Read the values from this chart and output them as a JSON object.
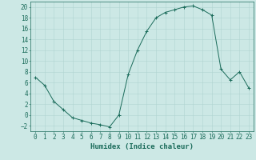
{
  "x": [
    0,
    1,
    2,
    3,
    4,
    5,
    6,
    7,
    8,
    9,
    10,
    11,
    12,
    13,
    14,
    15,
    16,
    17,
    18,
    19,
    20,
    21,
    22,
    23
  ],
  "y": [
    7,
    5.5,
    2.5,
    1,
    -0.5,
    -1,
    -1.5,
    -1.8,
    -2.2,
    0,
    7.5,
    12,
    15.5,
    18,
    19,
    19.5,
    20,
    20.2,
    19.5,
    18.5,
    8.5,
    6.5,
    8,
    5
  ],
  "xlabel": "Humidex (Indice chaleur)",
  "ylim": [
    -3,
    21
  ],
  "xlim": [
    -0.5,
    23.5
  ],
  "yticks": [
    -2,
    0,
    2,
    4,
    6,
    8,
    10,
    12,
    14,
    16,
    18,
    20
  ],
  "xticks": [
    0,
    1,
    2,
    3,
    4,
    5,
    6,
    7,
    8,
    9,
    10,
    11,
    12,
    13,
    14,
    15,
    16,
    17,
    18,
    19,
    20,
    21,
    22,
    23
  ],
  "line_color": "#1a6b5a",
  "marker": "+",
  "bg_color": "#cce8e5",
  "grid_color": "#b0d4d0",
  "label_color": "#1a6b5a",
  "label_fontsize": 6.5,
  "tick_fontsize": 5.5
}
